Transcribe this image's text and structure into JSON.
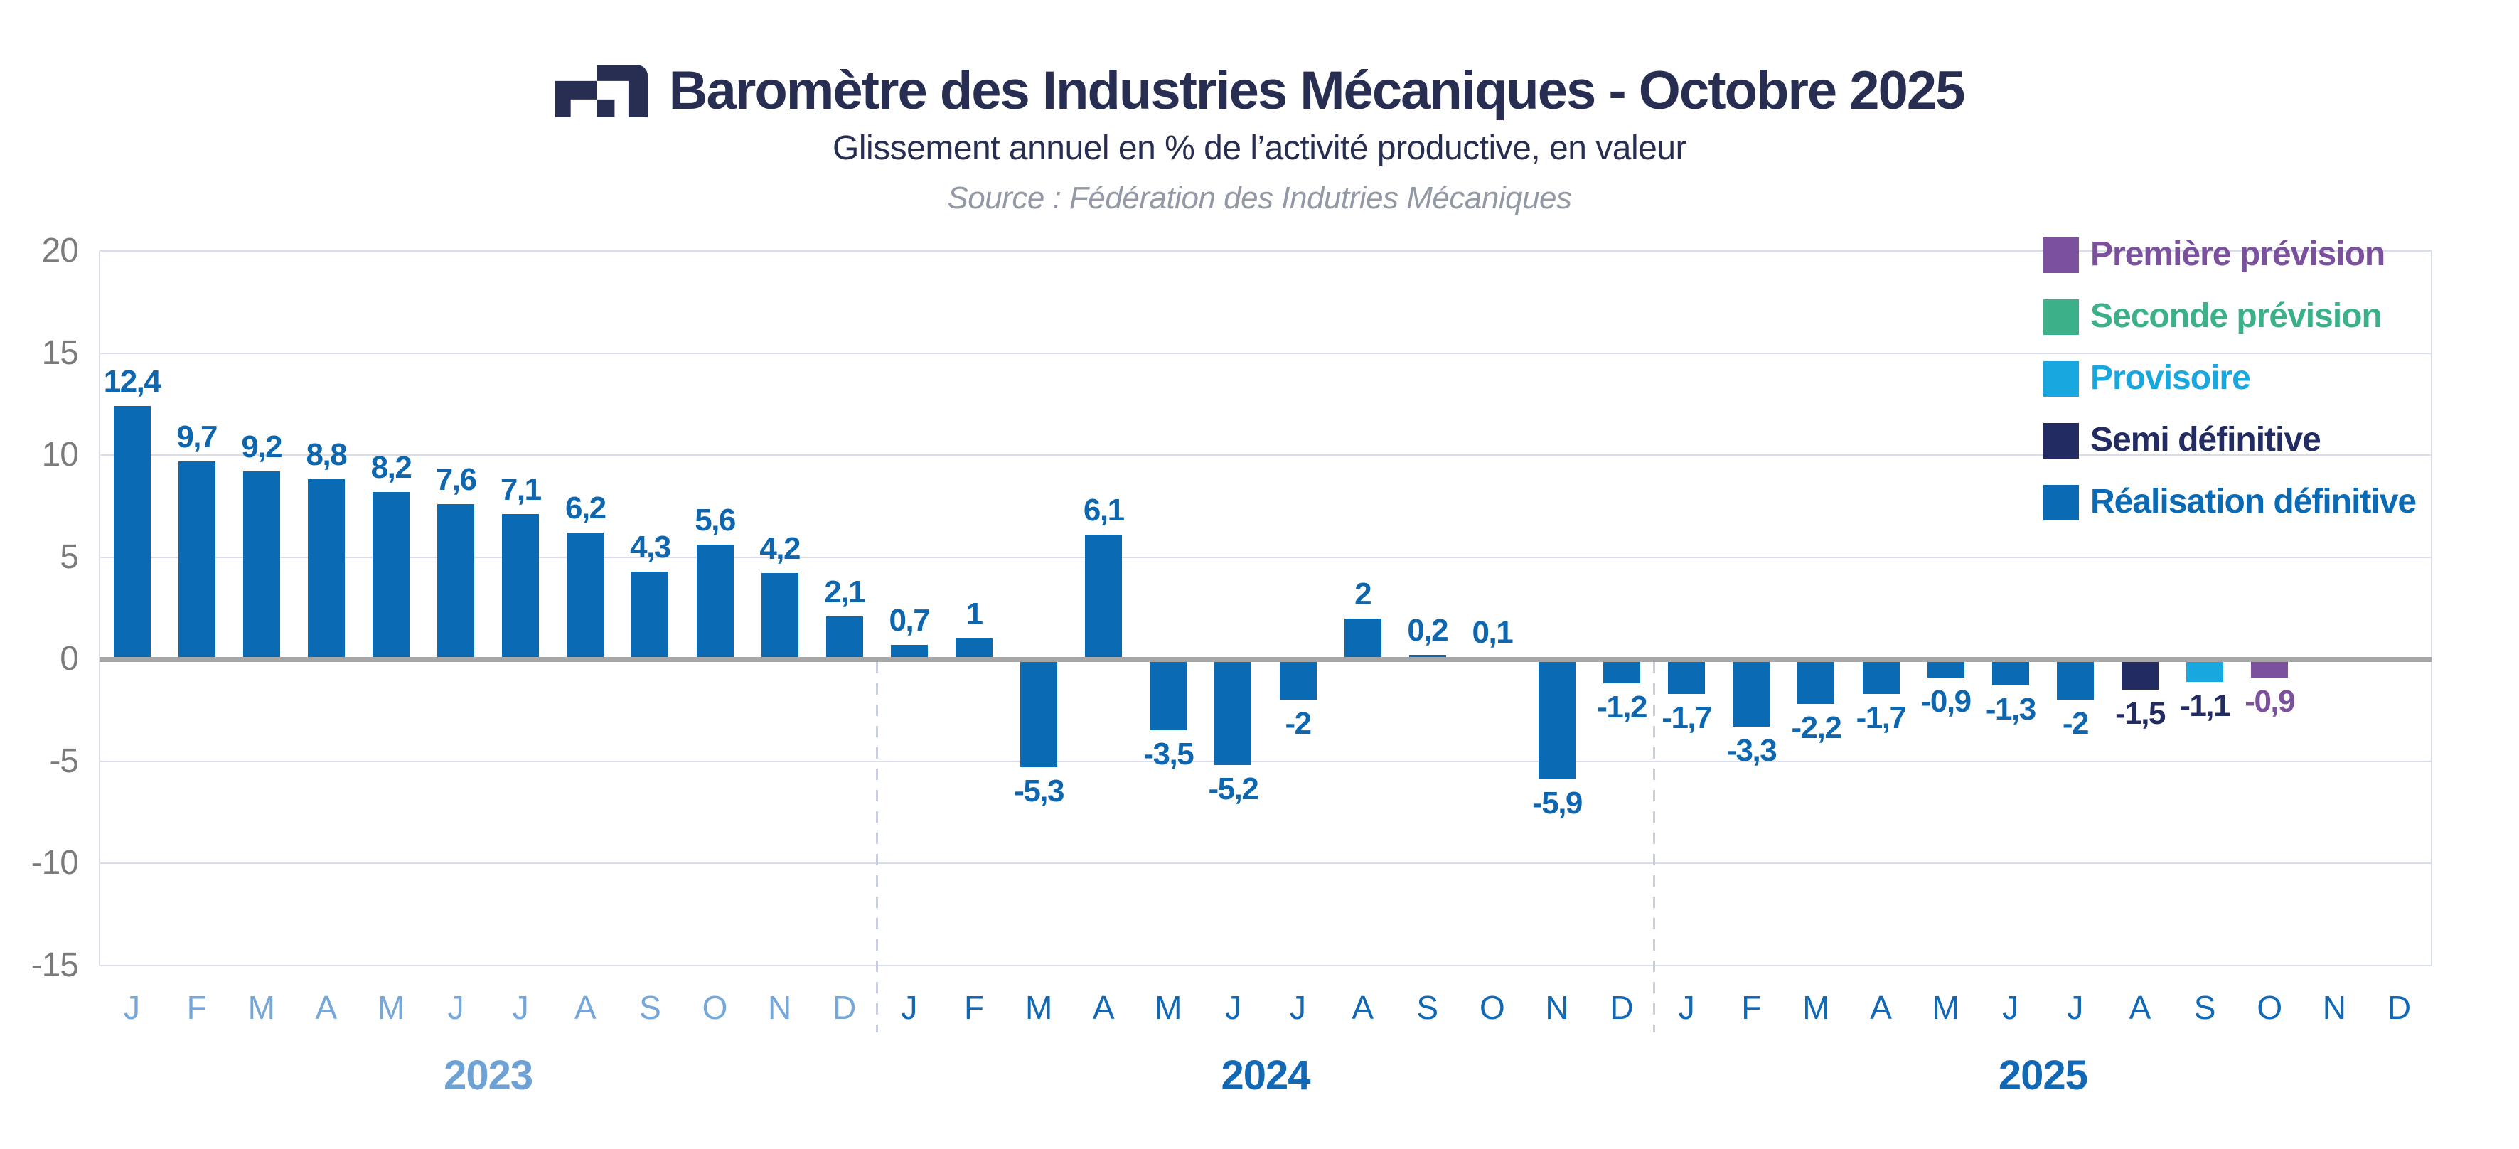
{
  "header": {
    "title": "Baromètre des Industries Mécaniques - Octobre 2025",
    "subtitle": "Glissement annuel en % de l’activité productive, en valeur",
    "source": "Source : Fédération des Indutries Mécaniques",
    "logo_color": "#272e52"
  },
  "chart_data": {
    "type": "bar",
    "title": "Baromètre des Industries Mécaniques - Octobre 2025",
    "subtitle": "Glissement annuel en % de l’activité productive, en valeur",
    "ylabel": "",
    "xlabel": "",
    "ylim": [
      -15,
      20
    ],
    "yticks": [
      20,
      15,
      10,
      5,
      0,
      -5,
      -10,
      -15
    ],
    "ytick_labels": [
      "20",
      "15",
      "10",
      "5",
      "0",
      "-5",
      "-10",
      "-15"
    ],
    "grid": "horizontal",
    "legend_position": "top-right",
    "years": [
      {
        "year": "2023",
        "month_color": "#76a7d9",
        "year_color": "#6ea2d5",
        "months": [
          "J",
          "F",
          "M",
          "A",
          "M",
          "J",
          "J",
          "A",
          "S",
          "O",
          "N",
          "D"
        ],
        "values": [
          12.4,
          9.7,
          9.2,
          8.8,
          8.2,
          7.6,
          7.1,
          6.2,
          4.3,
          5.6,
          4.2,
          2.1
        ],
        "labels": [
          "12,4",
          "9,7",
          "9,2",
          "8,8",
          "8,2",
          "7,6",
          "7,1",
          "6,2",
          "4,3",
          "5,6",
          "4,2",
          "2,1"
        ],
        "status": [
          "definitive",
          "definitive",
          "definitive",
          "definitive",
          "definitive",
          "definitive",
          "definitive",
          "definitive",
          "definitive",
          "definitive",
          "definitive",
          "definitive"
        ]
      },
      {
        "year": "2024",
        "month_color": "#1168b4",
        "year_color": "#1168b4",
        "months": [
          "J",
          "F",
          "M",
          "A",
          "M",
          "J",
          "J",
          "A",
          "S",
          "O",
          "N",
          "D"
        ],
        "values": [
          0.7,
          1,
          -5.3,
          6.1,
          -3.5,
          -5.2,
          -2,
          2,
          0.2,
          0.1,
          -5.9,
          -1.2
        ],
        "labels": [
          "0,7",
          "1",
          "-5,3",
          "6,1",
          "-3,5",
          "-5,2",
          "-2",
          "2",
          "0,2",
          "0,1",
          "-5,9",
          "-1,2"
        ],
        "status": [
          "definitive",
          "definitive",
          "definitive",
          "definitive",
          "definitive",
          "definitive",
          "definitive",
          "definitive",
          "definitive",
          "definitive",
          "definitive",
          "definitive"
        ]
      },
      {
        "year": "2025",
        "month_color": "#1168b4",
        "year_color": "#1168b4",
        "months": [
          "J",
          "F",
          "M",
          "A",
          "M",
          "J",
          "J",
          "A",
          "S",
          "O",
          "N",
          "D"
        ],
        "values": [
          -1.7,
          -3.3,
          -2.2,
          -1.7,
          -0.9,
          -1.3,
          -2,
          -1.5,
          -1.1,
          -0.9,
          null,
          null
        ],
        "labels": [
          "-1,7",
          "-3,3",
          "-2,2",
          "-1,7",
          "-0,9",
          "-1,3",
          "-2",
          "-1,5",
          "-1,1",
          "-0,9",
          "",
          ""
        ],
        "status": [
          "definitive",
          "definitive",
          "definitive",
          "definitive",
          "definitive",
          "definitive",
          "definitive",
          "semi",
          "provisoire",
          "premiere",
          null,
          null
        ]
      }
    ],
    "legend": [
      {
        "label": "Première prévision",
        "key": "premiere"
      },
      {
        "label": "Seconde prévision",
        "key": "seconde"
      },
      {
        "label": "Provisoire",
        "key": "provisoire"
      },
      {
        "label": "Semi définitive",
        "key": "semi"
      },
      {
        "label": "Réalisation définitive",
        "key": "definitive"
      }
    ],
    "colors": {
      "definitive": "#0b6ab4",
      "semi": "#232b63",
      "provisoire": "#18a7df",
      "premiere": "#7b519d",
      "seconde": "#3cb189"
    },
    "label_colors": {
      "definitive": "#0e67ae",
      "semi": "#232b63",
      "provisoire": "#232b63",
      "premiere": "#7b519d"
    },
    "axis_colors": {
      "tick_text": "#7b7b7b",
      "gridline": "#d9dde9",
      "zero_line": "#a7a7a7",
      "year_separator": "#c8cede"
    }
  }
}
